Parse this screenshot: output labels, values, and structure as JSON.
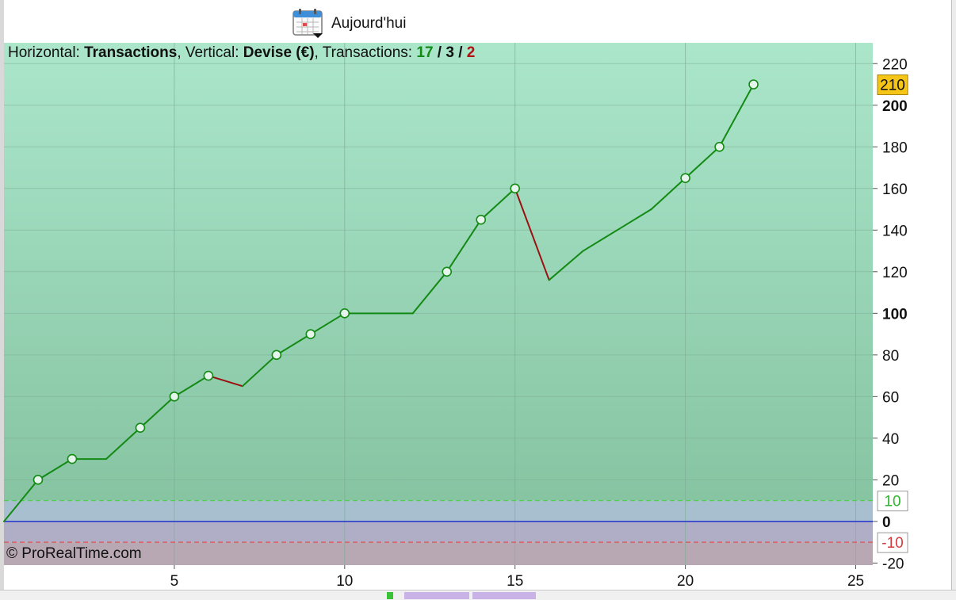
{
  "toolbar": {
    "date_label": "Aujourd'hui",
    "icon": "calendar-icon"
  },
  "header": {
    "h_prefix": "Horizontal: ",
    "h_value": "Transactions",
    "v_prefix": ", Vertical: ",
    "v_value": "Devise (€)",
    "t_prefix": ", Transactions: ",
    "t_total": "17",
    "t_sep1": " / ",
    "t_mid": "3",
    "t_sep2": " / ",
    "t_last": "2"
  },
  "copyright": "© ProRealTime.com",
  "colors": {
    "up": "#138a13",
    "down": "#9a1010",
    "zero_line": "#2233cc",
    "upper_band": "#4fcf4f",
    "lower_band": "#e05050",
    "marker_badge": "#f5c518"
  },
  "chart_data": {
    "type": "line",
    "x_ticks": [
      5,
      10,
      15,
      20,
      25
    ],
    "y_ticks": [
      -20,
      0,
      20,
      40,
      60,
      80,
      100,
      120,
      140,
      160,
      180,
      200,
      220
    ],
    "y_bold_ticks": [
      0,
      100,
      200
    ],
    "xlim": [
      0,
      25.5
    ],
    "ylim": [
      -21,
      230
    ],
    "grid": true,
    "series": [
      {
        "x": [
          0,
          1,
          2,
          3,
          4,
          5,
          6,
          7,
          8,
          9,
          10,
          11,
          12,
          13,
          14,
          15,
          16,
          17,
          18,
          19,
          20,
          21,
          22
        ],
        "y": [
          0,
          20,
          30,
          30,
          45,
          60,
          70,
          65,
          80,
          90,
          100,
          100,
          100,
          120,
          145,
          160,
          116,
          130,
          140,
          150,
          165,
          180,
          210
        ],
        "markers": [
          false,
          true,
          true,
          false,
          true,
          true,
          true,
          false,
          true,
          true,
          true,
          false,
          false,
          true,
          true,
          true,
          false,
          false,
          false,
          false,
          true,
          true,
          true
        ],
        "down_segments": [
          [
            6,
            7
          ],
          [
            15,
            16
          ]
        ]
      }
    ],
    "reference_lines": [
      {
        "value": 10,
        "label": "10"
      },
      {
        "value": 0,
        "label": "0"
      },
      {
        "value": -10,
        "label": "-10"
      }
    ],
    "last_value": {
      "value": 210,
      "label": "210"
    }
  }
}
